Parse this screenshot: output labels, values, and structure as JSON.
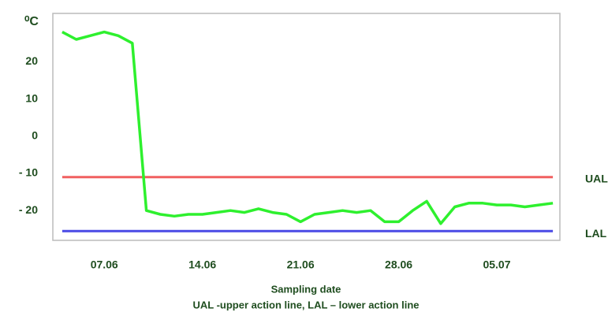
{
  "chart_data": {
    "type": "line",
    "y_unit": "⁰C",
    "x_label": "Sampling date",
    "caption": "UAL -upper action line, LAL – lower action line",
    "categories": [
      null,
      null,
      null,
      "07.06",
      null,
      null,
      null,
      null,
      null,
      null,
      "14.06",
      null,
      null,
      null,
      null,
      null,
      null,
      "21.06",
      null,
      null,
      null,
      null,
      null,
      null,
      "28.06",
      null,
      null,
      null,
      null,
      null,
      null,
      "05.07",
      null,
      null,
      null,
      null
    ],
    "series": [
      {
        "name": "UAL",
        "color": "#f06060",
        "values": [
          -11,
          -11,
          -11,
          -11,
          -11,
          -11,
          -11,
          -11,
          -11,
          -11,
          -11,
          -11,
          -11,
          -11,
          -11,
          -11,
          -11,
          -11,
          -11,
          -11,
          -11,
          -11,
          -11,
          -11,
          -11,
          -11,
          -11,
          -11,
          -11,
          -11,
          -11,
          -11,
          -11,
          -11,
          -11,
          -11
        ]
      },
      {
        "name": "LAL",
        "color": "#4a4ae6",
        "values": [
          -25.5,
          -25.5,
          -25.5,
          -25.5,
          -25.5,
          -25.5,
          -25.5,
          -25.5,
          -25.5,
          -25.5,
          -25.5,
          -25.5,
          -25.5,
          -25.5,
          -25.5,
          -25.5,
          -25.5,
          -25.5,
          -25.5,
          -25.5,
          -25.5,
          -25.5,
          -25.5,
          -25.5,
          -25.5,
          -25.5,
          -25.5,
          -25.5,
          -25.5,
          -25.5,
          -25.5,
          -25.5,
          -25.5,
          -25.5,
          -25.5,
          -25.5
        ]
      },
      {
        "color": "#2ef02e",
        "values": [
          28,
          26,
          27,
          28,
          27,
          25,
          -20,
          -21,
          -21.5,
          -21,
          -21,
          -20.5,
          -20,
          -20.5,
          -19.5,
          -20.5,
          -21,
          -23,
          -21,
          -20.5,
          -20,
          -20.5,
          -20,
          -23,
          -23,
          -20,
          -17.5,
          -23.5,
          -19,
          -18,
          -18,
          -18.5,
          -18.5,
          -19,
          -18.5,
          -18
        ]
      }
    ],
    "ylim": [
      -28,
      33
    ],
    "yticks": [
      {
        "value": -20,
        "label": "- 20"
      },
      {
        "value": -10,
        "label": "- 10"
      },
      0,
      10,
      20
    ]
  }
}
